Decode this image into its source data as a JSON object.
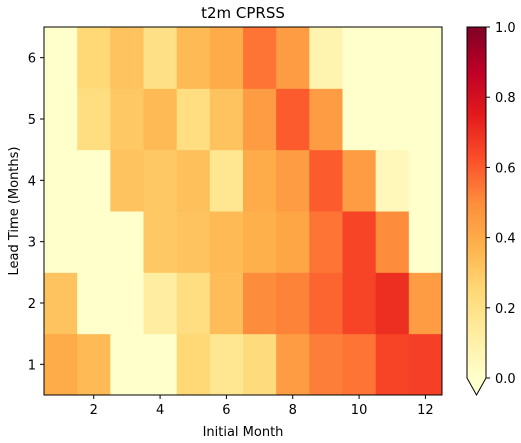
{
  "chart_data": {
    "type": "heatmap",
    "title": "t2m CPRSS",
    "xlabel": "Initial Month",
    "ylabel": "Lead Time (Months)",
    "x": [
      1,
      2,
      3,
      4,
      5,
      6,
      7,
      8,
      9,
      10,
      11,
      12
    ],
    "y": [
      1,
      2,
      3,
      4,
      5,
      6
    ],
    "x_ticks": [
      "2",
      "4",
      "6",
      "8",
      "10",
      "12"
    ],
    "y_ticks": [
      "1",
      "2",
      "3",
      "4",
      "5",
      "6"
    ],
    "xlim": [
      0.5,
      12.5
    ],
    "ylim": [
      0.5,
      6.5
    ],
    "z": [
      [
        0.4,
        0.35,
        0.0,
        0.0,
        0.25,
        0.17,
        0.23,
        0.45,
        0.53,
        0.55,
        0.65,
        0.66
      ],
      [
        0.32,
        0.0,
        0.0,
        0.12,
        0.22,
        0.34,
        0.5,
        0.52,
        0.58,
        0.65,
        0.7,
        0.45
      ],
      [
        0.0,
        0.0,
        0.0,
        0.3,
        0.32,
        0.35,
        0.38,
        0.42,
        0.55,
        0.65,
        0.5,
        0.0
      ],
      [
        0.0,
        0.0,
        0.32,
        0.3,
        0.33,
        0.17,
        0.4,
        0.45,
        0.6,
        0.45,
        0.05,
        0.0
      ],
      [
        0.0,
        0.22,
        0.3,
        0.35,
        0.22,
        0.32,
        0.45,
        0.6,
        0.45,
        0.0,
        0.0,
        0.0
      ],
      [
        0.0,
        0.25,
        0.32,
        0.2,
        0.35,
        0.4,
        0.55,
        0.45,
        0.08,
        0.0,
        0.0,
        0.0
      ]
    ],
    "colorbar": {
      "colormap": "YlOrRd",
      "min": 0.0,
      "max": 1.0,
      "ticks": [
        "0.0",
        "0.2",
        "0.4",
        "0.6",
        "0.8",
        "1.0"
      ],
      "extend": "min"
    },
    "grid": false
  }
}
